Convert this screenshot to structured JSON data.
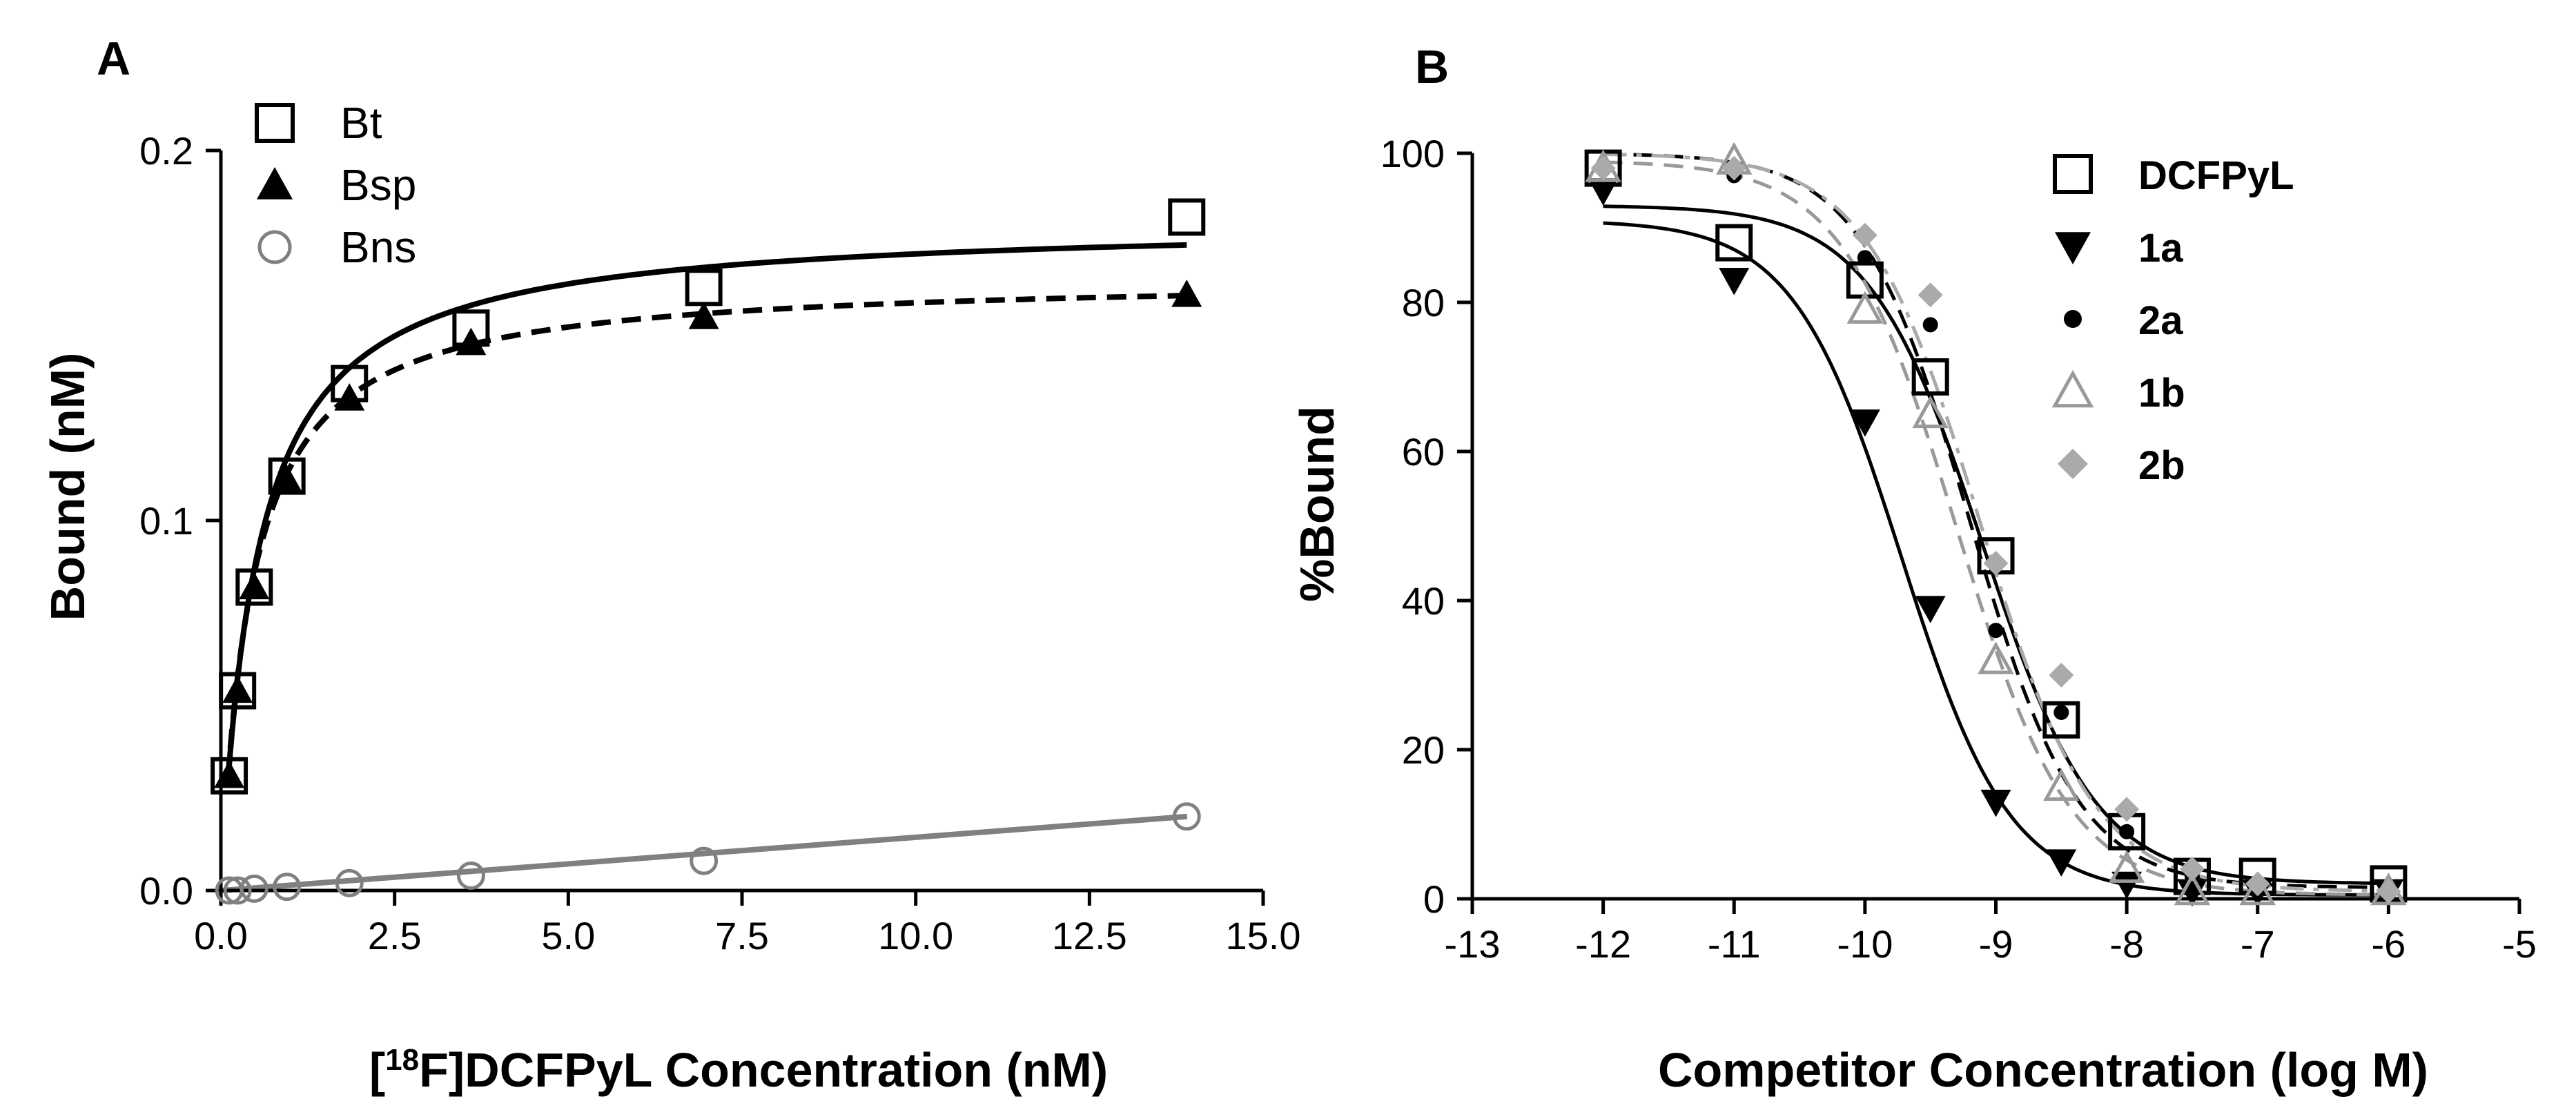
{
  "chart_data": [
    {
      "panel": "A",
      "type": "scatter",
      "xlabel_prefix": "[",
      "xlabel_sup": "18",
      "xlabel_rest": "F]DCFPyL Concentration (nM)",
      "ylabel": "Bound (nM)",
      "xlim": [
        0,
        15
      ],
      "ylim": [
        0,
        0.2
      ],
      "xticks": [
        0,
        2.5,
        5,
        7.5,
        10,
        12.5,
        15
      ],
      "xtick_labels": [
        "0.0",
        "2.5",
        "5.0",
        "7.5",
        "10.0",
        "12.5",
        "15.0"
      ],
      "yticks": [
        0,
        0.1,
        0.2
      ],
      "ytick_labels": [
        "0.0",
        "0.1",
        "0.2"
      ],
      "legend_position": "top-left",
      "series": [
        {
          "name": "Bt",
          "marker": "open-square",
          "color": "#000000",
          "line": "solid",
          "x": [
            0.12,
            0.24,
            0.48,
            0.95,
            1.85,
            3.6,
            6.95,
            13.9
          ],
          "y": [
            0.031,
            0.054,
            0.082,
            0.112,
            0.137,
            0.152,
            0.163,
            0.182
          ]
        },
        {
          "name": "Bsp",
          "marker": "filled-triangle",
          "color": "#000000",
          "line": "dashed",
          "x": [
            0.12,
            0.24,
            0.48,
            0.95,
            1.85,
            3.6,
            6.95,
            13.9
          ],
          "y": [
            0.031,
            0.054,
            0.082,
            0.111,
            0.133,
            0.148,
            0.155,
            0.161
          ]
        },
        {
          "name": "Bns",
          "marker": "open-circle",
          "color": "#808080",
          "line": "solid",
          "x": [
            0.12,
            0.24,
            0.48,
            0.95,
            1.85,
            3.6,
            6.95,
            13.9
          ],
          "y": [
            0.0,
            0.0,
            0.0005,
            0.001,
            0.002,
            0.004,
            0.008,
            0.02
          ]
        }
      ]
    },
    {
      "panel": "B",
      "type": "scatter",
      "xlabel": "Competitor Concentration (log M)",
      "ylabel": "%Bound",
      "xlim": [
        -13,
        -5
      ],
      "ylim": [
        0,
        100
      ],
      "xticks": [
        -13,
        -12,
        -11,
        -10,
        -9,
        -8,
        -7,
        -6,
        -5
      ],
      "xtick_labels": [
        "-13",
        "-12",
        "-11",
        "-10",
        "-9",
        "-8",
        "-7",
        "-6",
        "-5"
      ],
      "yticks": [
        0,
        20,
        40,
        60,
        80,
        100
      ],
      "ytick_labels": [
        "0",
        "20",
        "40",
        "60",
        "80",
        "100"
      ],
      "legend_position": "top-right",
      "series": [
        {
          "name": "DCFPyL",
          "marker": "open-square",
          "color": "#000000",
          "line": "solid",
          "x": [
            -12,
            -11,
            -10,
            -9.5,
            -9,
            -8.5,
            -8,
            -7.5,
            -7,
            -6
          ],
          "y": [
            98,
            88,
            83,
            70,
            46,
            24,
            9,
            3,
            3,
            2
          ]
        },
        {
          "name": "1a",
          "marker": "filled-down-triangle",
          "color": "#000000",
          "line": "solid",
          "x": [
            -12,
            -11,
            -10,
            -9.5,
            -9,
            -8.5,
            -8,
            -7.5,
            -7,
            -6
          ],
          "y": [
            95,
            83,
            64,
            39,
            13,
            5,
            2,
            1,
            1,
            1
          ]
        },
        {
          "name": "2a",
          "marker": "filled-circle",
          "color": "#000000",
          "line": "dashed",
          "x": [
            -12,
            -11,
            -10,
            -9.5,
            -9,
            -8.5,
            -8,
            -7.5,
            -7,
            -6
          ],
          "y": [
            98,
            97,
            86,
            77,
            36,
            25,
            9,
            3,
            2,
            1
          ]
        },
        {
          "name": "1b",
          "marker": "open-triangle",
          "color": "#999999",
          "line": "dashed",
          "x": [
            -12,
            -11,
            -10,
            -9.5,
            -9,
            -8.5,
            -8,
            -7.5,
            -7,
            -6
          ],
          "y": [
            98,
            99,
            79,
            65,
            32,
            15,
            4,
            1,
            1,
            1
          ]
        },
        {
          "name": "2b",
          "marker": "filled-diamond",
          "color": "#aaaaaa",
          "line": "dash-dot",
          "x": [
            -12,
            -11,
            -10,
            -9.5,
            -9,
            -8.5,
            -8,
            -7.5,
            -7,
            -6
          ],
          "y": [
            98,
            98,
            89,
            81,
            45,
            30,
            12,
            4,
            2,
            1
          ]
        }
      ]
    }
  ]
}
